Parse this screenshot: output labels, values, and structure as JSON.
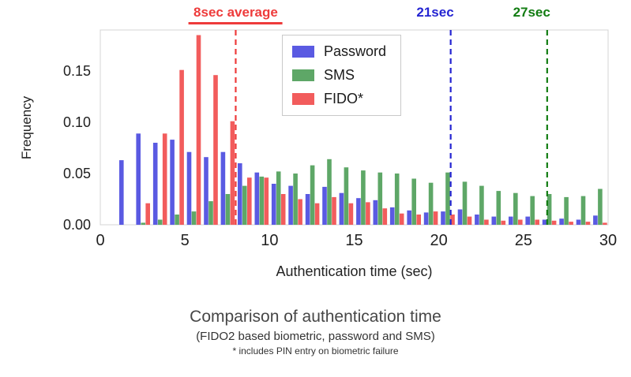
{
  "figure": {
    "title": "Comparison of authentication time",
    "subtitle": "(FIDO2 based biometric, password and SMS)",
    "footnote": "* includes PIN entry on biometric failure"
  },
  "chart_data": {
    "type": "bar",
    "subtype": "histogram",
    "xlabel": "Authentication time (sec)",
    "ylabel": "Frequency",
    "xlim": [
      0,
      30
    ],
    "ylim": [
      0,
      0.19
    ],
    "xticks": [
      0,
      5,
      10,
      15,
      20,
      25,
      30
    ],
    "yticks": [
      0.0,
      0.05,
      0.1,
      0.15
    ],
    "grid": false,
    "legend_position": "upper-center inside plot",
    "bins_start": 1,
    "bin_width": 1,
    "series": [
      {
        "name": "Password",
        "color": "#5a5ae2",
        "values": [
          0.063,
          0.089,
          0.08,
          0.083,
          0.071,
          0.066,
          0.071,
          0.06,
          0.051,
          0.04,
          0.038,
          0.03,
          0.037,
          0.031,
          0.026,
          0.024,
          0.017,
          0.014,
          0.012,
          0.013,
          0.015,
          0.01,
          0.008,
          0.008,
          0.008,
          0.005,
          0.006,
          0.005,
          0.009
        ]
      },
      {
        "name": "SMS",
        "color": "#5ea767",
        "values": [
          0.0,
          0.002,
          0.005,
          0.01,
          0.013,
          0.023,
          0.03,
          0.038,
          0.047,
          0.052,
          0.05,
          0.058,
          0.064,
          0.056,
          0.053,
          0.051,
          0.05,
          0.045,
          0.041,
          0.051,
          0.042,
          0.038,
          0.033,
          0.031,
          0.028,
          0.03,
          0.027,
          0.028,
          0.035
        ]
      },
      {
        "name": "FIDO*",
        "color": "#f25c5c",
        "values": [
          0.0,
          0.021,
          0.089,
          0.151,
          0.185,
          0.146,
          0.101,
          0.046,
          0.046,
          0.03,
          0.025,
          0.021,
          0.027,
          0.021,
          0.022,
          0.016,
          0.011,
          0.01,
          0.013,
          0.01,
          0.008,
          0.005,
          0.004,
          0.005,
          0.005,
          0.004,
          0.003,
          0.003,
          0.002
        ]
      }
    ],
    "annotations": [
      {
        "name": "fido-average",
        "text": "8sec average",
        "x": 8,
        "color": "#ee3b3b",
        "align": "center",
        "underline": true
      },
      {
        "name": "password-average",
        "text": "21sec",
        "x": 20.7,
        "color": "#2525d2",
        "align": "right",
        "underline": false
      },
      {
        "name": "sms-average",
        "text": "27sec",
        "x": 26.4,
        "color": "#127c12",
        "align": "right",
        "underline": false
      }
    ]
  }
}
